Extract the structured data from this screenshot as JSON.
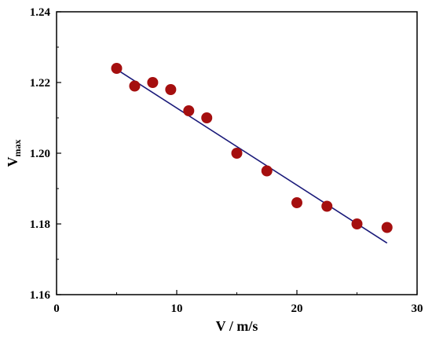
{
  "chart_data": {
    "type": "scatter",
    "xlabel": "V / m/s",
    "ylabel": {
      "main": "V",
      "sub": "max"
    },
    "xlim": [
      0,
      30
    ],
    "ylim": [
      1.16,
      1.24
    ],
    "x_ticks": [
      0,
      10,
      20,
      30
    ],
    "x_tick_labels": [
      "0",
      "10",
      "20",
      "30"
    ],
    "y_ticks": [
      1.16,
      1.18,
      1.2,
      1.22,
      1.24
    ],
    "y_tick_labels": [
      "1.16",
      "1.18",
      "1.20",
      "1.22",
      "1.24"
    ],
    "grid": false,
    "series": [
      {
        "kind": "points",
        "color": "#a50f0f",
        "x": [
          5.0,
          6.5,
          8.0,
          9.5,
          11.0,
          12.5,
          15.0,
          17.5,
          20.0,
          22.5,
          25.0,
          27.5
        ],
        "y": [
          1.224,
          1.219,
          1.22,
          1.218,
          1.212,
          1.21,
          1.2,
          1.195,
          1.186,
          1.185,
          1.18,
          1.179
        ]
      },
      {
        "kind": "line",
        "color": "#1a1a7a",
        "x": [
          5.0,
          27.5
        ],
        "y": [
          1.2237,
          1.1746
        ]
      }
    ]
  }
}
